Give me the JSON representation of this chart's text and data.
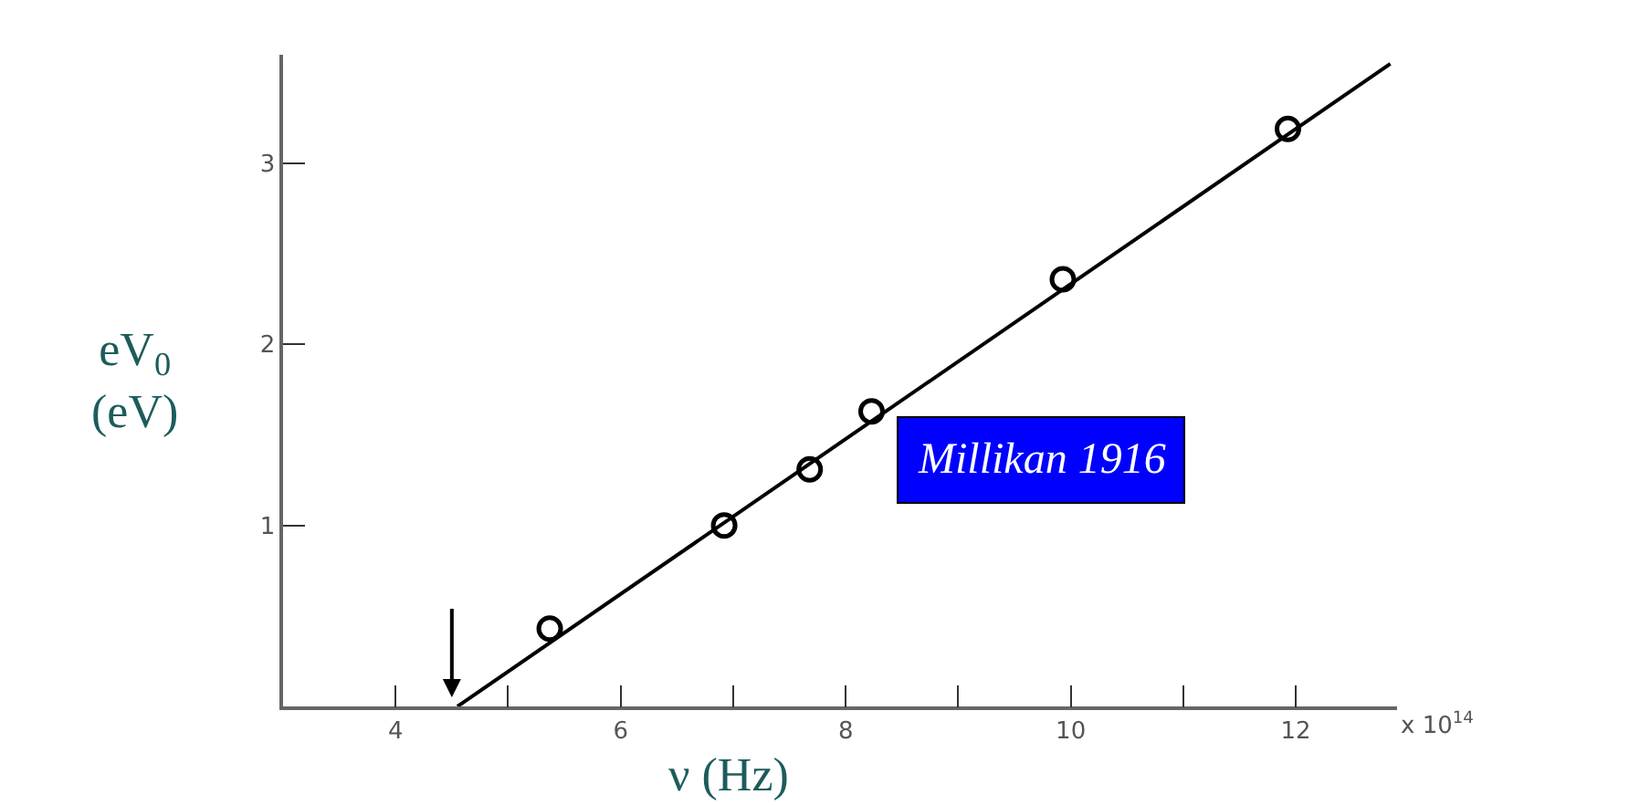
{
  "chart_data": {
    "type": "scatter",
    "xlabel": "ν (Hz)",
    "ylabel": "eV$_{0}$\n(eV)",
    "x": [
      5.37,
      6.92,
      7.68,
      8.23,
      9.93,
      11.93
    ],
    "series": [
      {
        "color": "#000000",
        "marker": "circle",
        "values": [
          0.43,
          1.0,
          1.31,
          1.63,
          2.36,
          3.19
        ]
      },
      {
        "type": "line",
        "color": "#000000",
        "marker": "none",
        "x": [
          4.55,
          12.84
        ],
        "values": [
          0,
          3.55
        ]
      }
    ],
    "line_style": "solid",
    "legend": false,
    "xlim": [
      3.0,
      12.9
    ],
    "ylim": [
      0,
      3.6
    ],
    "xticks": [
      4,
      {
        "value": 5,
        "label": null
      },
      6,
      {
        "value": 7,
        "label": null
      },
      8,
      {
        "value": 9,
        "label": null
      },
      10,
      {
        "value": 11,
        "label": null
      },
      12
    ],
    "yticks": [
      1,
      2,
      3
    ],
    "annotations": [
      "x 10$^{14}$",
      "Millikan 1916"
    ]
  }
}
